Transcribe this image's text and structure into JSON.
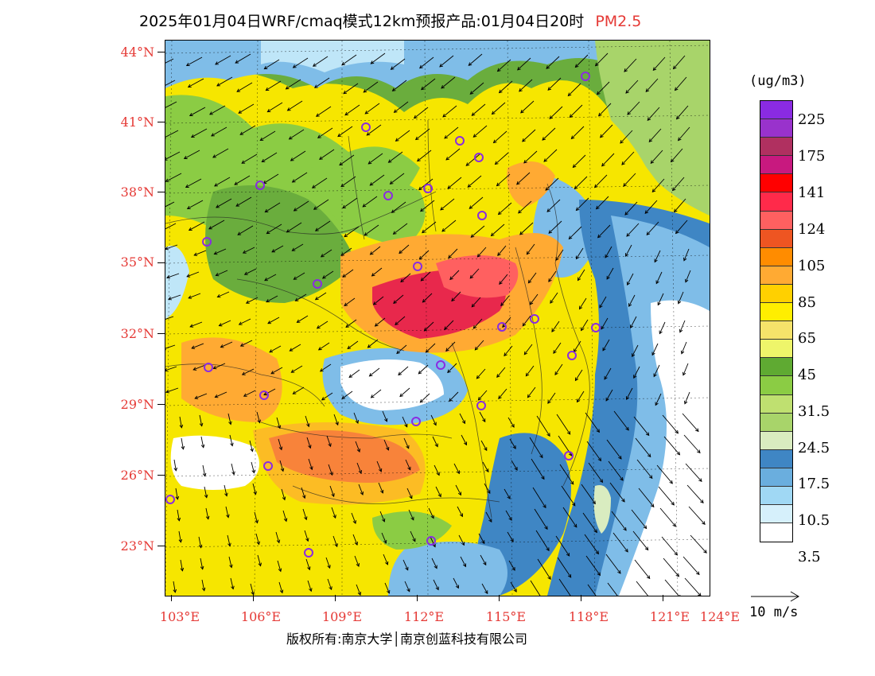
{
  "title": {
    "main": "2025年01月04日WRF/cmaq模式12km预报产品:01月04日20时",
    "pollutant": "PM2.5"
  },
  "lat_labels": [
    "44°N",
    "41°N",
    "38°N",
    "35°N",
    "32°N",
    "29°N",
    "26°N",
    "23°N"
  ],
  "lon_labels": [
    "103°E",
    "106°E",
    "109°E",
    "112°E",
    "115°E",
    "118°E",
    "121°E",
    "124°E"
  ],
  "colorbar": {
    "unit": "(ug/m3)",
    "labels": [
      "225",
      "175",
      "141",
      "124",
      "105",
      "85",
      "65",
      "45",
      "31.5",
      "24.5",
      "17.5",
      "10.5",
      "3.5"
    ],
    "colors": [
      "#8a2be2",
      "#9932cc",
      "#b03060",
      "#c8197f",
      "#ff0000",
      "#ff2a4a",
      "#ff6060",
      "#ee5522",
      "#ff8c00",
      "#ffaa33",
      "#ffd000",
      "#ffee00",
      "#f5e36a",
      "#eef56a",
      "#5faa32",
      "#8bcc44",
      "#bfe070",
      "#a8d46a",
      "#d9ecc0",
      "#3f86c4",
      "#6aaede",
      "#a0d8f4",
      "#d6f0fb",
      "#ffffff"
    ]
  },
  "wind_legend": {
    "label": "10 m/s"
  },
  "copyright": {
    "text": "版权所有:南京大学│南京创蓝科技有限公司"
  },
  "palette": {
    "white": "#ffffff",
    "light_blue": "#bfe6f8",
    "mid_blue": "#7fbde8",
    "blue": "#3f86c4",
    "pale_green": "#d9ecc0",
    "light_green": "#a8d46a",
    "green": "#6aad3d",
    "yellow": "#f6e600",
    "light_yellow": "#eef56a",
    "orange": "#ffaa33",
    "dark_orange": "#f07020",
    "red": "#e8284c",
    "magenta": "#c8197f",
    "purple": "#8a2be2"
  }
}
